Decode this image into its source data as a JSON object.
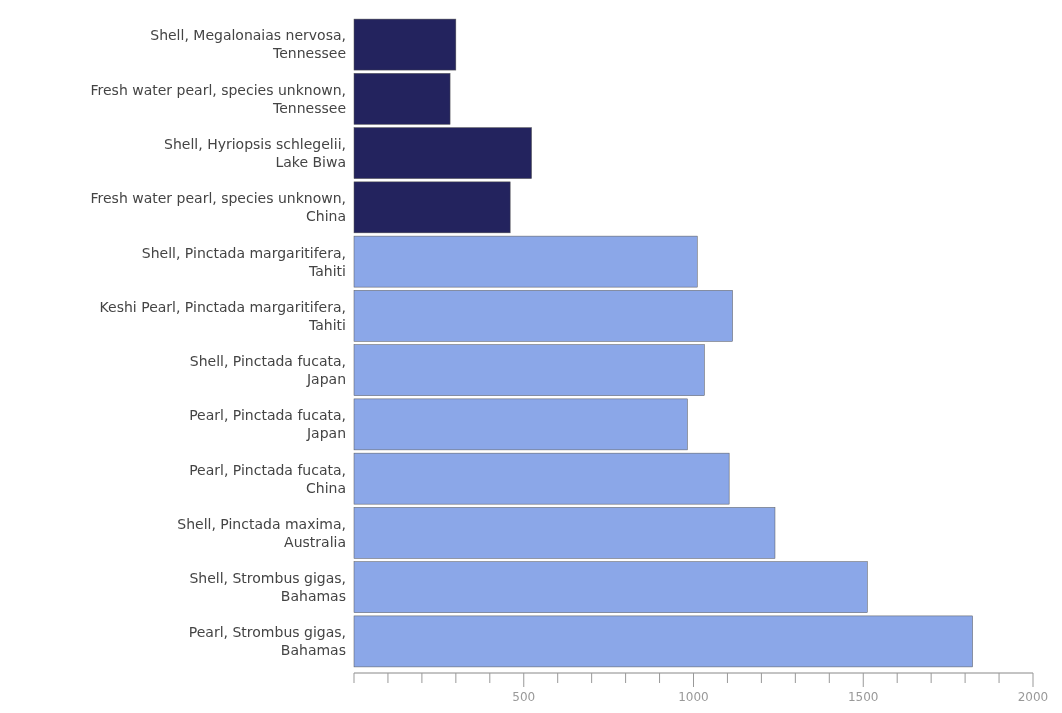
{
  "chart_data": {
    "type": "bar",
    "orientation": "horizontal",
    "categories": [
      "Shell, Megalonaias nervosa, Tennessee",
      "Fresh water pearl, species unknown, Tennessee",
      "Shell, Hyriopsis schlegelii, Lake Biwa",
      "Fresh water pearl, species unknown, China",
      "Shell, Pinctada margaritifera, Tahiti",
      "Keshi Pearl, Pinctada margaritifera, Tahiti",
      "Shell, Pinctada fucata, Japan",
      "Pearl, Pinctada fucata, Japan",
      "Pearl, Pinctada fucata, China",
      "Shell, Pinctada maxima, Australia",
      "Shell, Strombus gigas, Bahamas",
      "Pearl, Strombus gigas, Bahamas"
    ],
    "values": [
      300,
      283,
      523,
      460,
      1011,
      1115,
      1032,
      982,
      1105,
      1240,
      1512,
      1822
    ],
    "colors": [
      "#23235e",
      "#23235e",
      "#23235e",
      "#23235e",
      "#8ba7e8",
      "#8ba7e8",
      "#8ba7e8",
      "#8ba7e8",
      "#8ba7e8",
      "#8ba7e8",
      "#8ba7e8",
      "#8ba7e8"
    ],
    "xlim": [
      0,
      2000
    ],
    "xticks": [
      {
        "value": 0,
        "label": null
      },
      {
        "value": 100,
        "label": null
      },
      {
        "value": 200,
        "label": null
      },
      {
        "value": 300,
        "label": null
      },
      {
        "value": 400,
        "label": null
      },
      500,
      {
        "value": 600,
        "label": null
      },
      {
        "value": 700,
        "label": null
      },
      {
        "value": 800,
        "label": null
      },
      {
        "value": 900,
        "label": null
      },
      1000,
      {
        "value": 1100,
        "label": null
      },
      {
        "value": 1200,
        "label": null
      },
      {
        "value": 1300,
        "label": null
      },
      {
        "value": 1400,
        "label": null
      },
      1500,
      {
        "value": 1600,
        "label": null
      },
      {
        "value": 1700,
        "label": null
      },
      {
        "value": 1800,
        "label": null
      },
      {
        "value": 1900,
        "label": null
      },
      2000
    ],
    "grid": false
  }
}
